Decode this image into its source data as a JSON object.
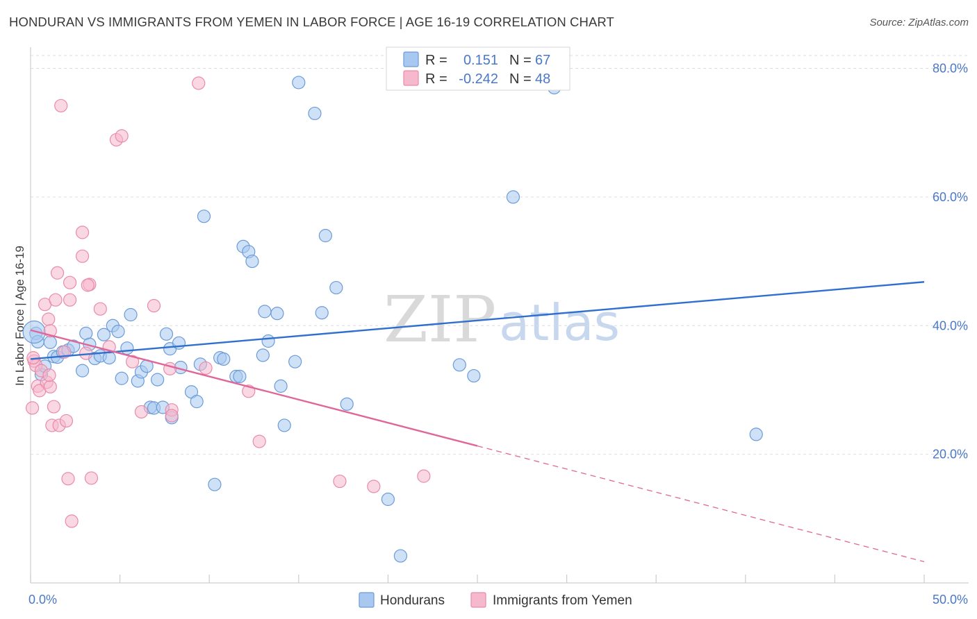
{
  "title": "HONDURAN VS IMMIGRANTS FROM YEMEN IN LABOR FORCE | AGE 16-19 CORRELATION CHART",
  "source": "Source: ZipAtlas.com",
  "watermark": {
    "zip": "ZIP",
    "atlas": "atlas"
  },
  "chart_data": {
    "type": "scatter",
    "xlabel": "",
    "ylabel": "In Labor Force | Age 16-19",
    "xlim": [
      0,
      50
    ],
    "ylim": [
      0,
      82
    ],
    "x_tick_labels": {
      "left": "0.0%",
      "right": "50.0%"
    },
    "y_ticks": [
      {
        "value": 20,
        "label": "20.0%"
      },
      {
        "value": 40,
        "label": "40.0%"
      },
      {
        "value": 60,
        "label": "60.0%"
      },
      {
        "value": 80,
        "label": "80.0%"
      }
    ],
    "grid": true,
    "legend_position": "top-center",
    "colors": {
      "hondurans_fill": "#a8c8f0",
      "hondurans_stroke": "#6b9bd8",
      "hondurans_line": "#2f6fce",
      "yemen_fill": "#f6b8cc",
      "yemen_stroke": "#e98aaa",
      "yemen_line": "#e0669a",
      "tick_text": "#4a78c9"
    },
    "legend": {
      "rows": [
        {
          "r_label": "R =",
          "r_value": "0.151",
          "n_label": "N =",
          "n_value": "67"
        },
        {
          "r_label": "R =",
          "r_value": "-0.242",
          "n_label": "N =",
          "n_value": "48"
        }
      ]
    },
    "series": [
      {
        "name": "Hondurans",
        "r": 0.151,
        "n": 67,
        "trend": {
          "x0": 0,
          "y0": 34.8,
          "x1": 50,
          "y1": 46.8,
          "solid_to": 50
        },
        "points": [
          [
            0.3,
            38.8
          ],
          [
            0.4,
            37.5
          ],
          [
            0.6,
            32.4
          ],
          [
            0.8,
            33.7
          ],
          [
            1.1,
            37.4
          ],
          [
            1.3,
            35.2
          ],
          [
            1.5,
            35.1
          ],
          [
            1.8,
            35.9
          ],
          [
            2.1,
            36.2
          ],
          [
            2.4,
            36.8
          ],
          [
            2.9,
            33.0
          ],
          [
            3.1,
            38.8
          ],
          [
            3.3,
            37.1
          ],
          [
            3.6,
            34.9
          ],
          [
            3.9,
            35.3
          ],
          [
            4.1,
            38.6
          ],
          [
            4.4,
            35.0
          ],
          [
            4.6,
            40.0
          ],
          [
            4.9,
            39.1
          ],
          [
            5.1,
            31.8
          ],
          [
            5.4,
            36.5
          ],
          [
            5.6,
            41.7
          ],
          [
            6.0,
            31.4
          ],
          [
            6.2,
            32.8
          ],
          [
            6.5,
            33.7
          ],
          [
            6.7,
            27.3
          ],
          [
            6.9,
            27.2
          ],
          [
            7.1,
            31.6
          ],
          [
            7.4,
            27.3
          ],
          [
            7.6,
            38.7
          ],
          [
            7.8,
            36.4
          ],
          [
            7.9,
            25.7
          ],
          [
            8.3,
            37.3
          ],
          [
            8.4,
            33.5
          ],
          [
            9.0,
            29.7
          ],
          [
            9.3,
            28.2
          ],
          [
            9.5,
            34.0
          ],
          [
            9.7,
            57.0
          ],
          [
            10.3,
            15.3
          ],
          [
            10.6,
            35.0
          ],
          [
            10.8,
            34.8
          ],
          [
            11.5,
            32.1
          ],
          [
            11.7,
            32.1
          ],
          [
            11.9,
            52.3
          ],
          [
            12.2,
            51.5
          ],
          [
            12.4,
            50.0
          ],
          [
            13.0,
            35.4
          ],
          [
            13.1,
            42.2
          ],
          [
            13.3,
            37.6
          ],
          [
            13.8,
            41.9
          ],
          [
            14.0,
            30.6
          ],
          [
            14.2,
            24.5
          ],
          [
            14.8,
            34.4
          ],
          [
            15.0,
            77.8
          ],
          [
            15.9,
            73.0
          ],
          [
            16.3,
            42.0
          ],
          [
            16.5,
            54.0
          ],
          [
            17.1,
            45.9
          ],
          [
            17.7,
            27.8
          ],
          [
            20.0,
            13.0
          ],
          [
            20.7,
            4.2
          ],
          [
            24.0,
            33.9
          ],
          [
            24.8,
            32.2
          ],
          [
            27.0,
            60.0
          ],
          [
            29.3,
            77.0
          ],
          [
            40.6,
            23.1
          ],
          [
            0.2,
            39.0
          ]
        ]
      },
      {
        "name": "Immigrants from Yemen",
        "r": -0.242,
        "n": 48,
        "trend": {
          "x0": 0,
          "y0": 39.3,
          "x1": 50,
          "y1": 3.3,
          "solid_to": 25
        },
        "points": [
          [
            0.1,
            27.2
          ],
          [
            0.2,
            34.5
          ],
          [
            0.3,
            33.8
          ],
          [
            0.4,
            30.6
          ],
          [
            0.5,
            29.9
          ],
          [
            0.6,
            33.0
          ],
          [
            0.8,
            43.3
          ],
          [
            0.9,
            31.2
          ],
          [
            1.0,
            41.0
          ],
          [
            1.1,
            39.2
          ],
          [
            1.1,
            30.5
          ],
          [
            1.2,
            24.5
          ],
          [
            1.3,
            27.4
          ],
          [
            1.4,
            44.0
          ],
          [
            1.5,
            48.2
          ],
          [
            1.6,
            24.5
          ],
          [
            1.7,
            74.2
          ],
          [
            1.9,
            35.9
          ],
          [
            2.0,
            25.2
          ],
          [
            2.1,
            16.2
          ],
          [
            2.2,
            44.0
          ],
          [
            2.2,
            46.7
          ],
          [
            2.3,
            9.6
          ],
          [
            2.9,
            54.5
          ],
          [
            2.9,
            50.8
          ],
          [
            3.1,
            35.7
          ],
          [
            3.3,
            46.4
          ],
          [
            3.2,
            46.3
          ],
          [
            3.4,
            16.3
          ],
          [
            3.9,
            42.6
          ],
          [
            4.4,
            36.7
          ],
          [
            4.8,
            68.9
          ],
          [
            5.1,
            69.5
          ],
          [
            5.7,
            34.4
          ],
          [
            6.2,
            26.6
          ],
          [
            6.9,
            43.1
          ],
          [
            7.8,
            33.3
          ],
          [
            7.9,
            26.9
          ],
          [
            7.9,
            26.0
          ],
          [
            9.4,
            77.7
          ],
          [
            9.8,
            33.4
          ],
          [
            12.2,
            29.8
          ],
          [
            12.8,
            22.0
          ],
          [
            17.3,
            15.8
          ],
          [
            19.2,
            15.0
          ],
          [
            22.0,
            16.6
          ],
          [
            0.15,
            35.0
          ],
          [
            1.05,
            32.3
          ]
        ]
      }
    ]
  },
  "bottom_legend": {
    "items": [
      {
        "label": "Hondurans"
      },
      {
        "label": "Immigrants from Yemen"
      }
    ]
  }
}
